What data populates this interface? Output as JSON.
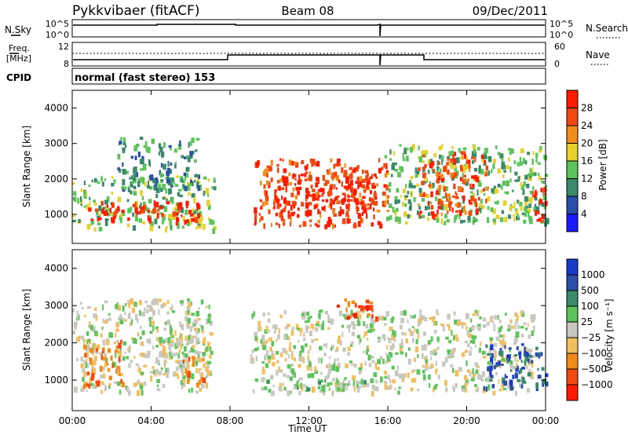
{
  "header": {
    "radar": "Pykkvibaer (fitACF)",
    "beam": "Beam 08",
    "date": "09/Dec/2011"
  },
  "params": {
    "nsky_label": "N.Sky",
    "nsky_ticks": [
      "10^5",
      "10^0"
    ],
    "nsearch_label": "N.Search",
    "nsearch_ticks": [
      "10^5",
      "10^0"
    ],
    "freq_label_top": "Freq.",
    "freq_label_bottom": "[MHz]",
    "freq_ticks": [
      "12",
      "8"
    ],
    "nave_label": "Nave",
    "nave_ticks": [
      "60",
      "0"
    ],
    "cpid_label": "CPID",
    "cpid_value": "normal (fast stereo) 153"
  },
  "colors": {
    "power": [
      "#1a1aff",
      "#2a4fa8",
      "#3a8a6a",
      "#5cc45a",
      "#e6d02a",
      "#f08c1a",
      "#f04a10",
      "#ff1a00"
    ],
    "velocity": [
      "#ff1a00",
      "#f04a10",
      "#f08c1a",
      "#f0c060",
      "#c8c8c0",
      "#5cc45a",
      "#3a8a6a",
      "#2a4fa8",
      "#1a3acc"
    ]
  },
  "chart_data": [
    {
      "type": "heatmap",
      "name": "power-panel",
      "xlabel": "Time UT",
      "ylabel": "Slant Range [km]",
      "xlim": [
        0,
        24
      ],
      "ylim": [
        180,
        4500
      ],
      "x_ticks": [
        "00:00",
        "04:00",
        "08:00",
        "12:00",
        "16:00",
        "20:00",
        "00:00"
      ],
      "y_ticks": [
        1000,
        2000,
        3000,
        4000
      ],
      "colorbar": {
        "label": "Power [dB]",
        "ticks": [
          "28",
          "24",
          "20",
          "16",
          "12",
          "8",
          "4"
        ]
      },
      "regions": [
        {
          "x": [
            0.0,
            7.2
          ],
          "y": [
            600,
            2100
          ],
          "level": 3
        },
        {
          "x": [
            0.8,
            6.4
          ],
          "y": [
            800,
            1400
          ],
          "level": 7
        },
        {
          "x": [
            2.2,
            6.4
          ],
          "y": [
            1700,
            3200
          ],
          "level": 2
        },
        {
          "x": [
            9.2,
            16.0
          ],
          "y": [
            700,
            2600
          ],
          "level": 6
        },
        {
          "x": [
            10.2,
            15.4
          ],
          "y": [
            1000,
            2200
          ],
          "level": 7
        },
        {
          "x": [
            15.8,
            24.0
          ],
          "y": [
            800,
            3000
          ],
          "level": 3
        },
        {
          "x": [
            17.5,
            21.0
          ],
          "y": [
            1000,
            2800
          ],
          "level": 6
        },
        {
          "x": [
            23.3,
            24.0
          ],
          "y": [
            800,
            1800
          ],
          "level": 7
        }
      ]
    },
    {
      "type": "heatmap",
      "name": "velocity-panel",
      "xlabel": "Time UT",
      "ylabel": "Slant Range [km]",
      "xlim": [
        0,
        24
      ],
      "ylim": [
        180,
        4500
      ],
      "x_ticks": [
        "00:00",
        "04:00",
        "08:00",
        "12:00",
        "16:00",
        "20:00",
        "00:00"
      ],
      "y_ticks": [
        1000,
        2000,
        3000,
        4000
      ],
      "colorbar": {
        "label": "Velocity [m s⁻¹]",
        "ticks": [
          "1000",
          "500",
          "100",
          "25",
          "−25",
          "−100",
          "−500",
          "−1000"
        ]
      },
      "regions": [
        {
          "x": [
            0.0,
            7.0
          ],
          "y": [
            700,
            3200
          ],
          "level": 4
        },
        {
          "x": [
            0.5,
            2.5
          ],
          "y": [
            900,
            2100
          ],
          "level": 2
        },
        {
          "x": [
            4.0,
            7.0
          ],
          "y": [
            1200,
            2200
          ],
          "level": 4
        },
        {
          "x": [
            5.6,
            6.6
          ],
          "y": [
            900,
            1700
          ],
          "level": 2
        },
        {
          "x": [
            9.0,
            23.4
          ],
          "y": [
            700,
            2900
          ],
          "level": 4
        },
        {
          "x": [
            9.6,
            15.0
          ],
          "y": [
            800,
            1100
          ],
          "level": 5
        },
        {
          "x": [
            13.2,
            15.4
          ],
          "y": [
            2700,
            3200
          ],
          "level": 1
        },
        {
          "x": [
            20.8,
            24.0
          ],
          "y": [
            800,
            2000
          ],
          "level": 7
        }
      ]
    }
  ]
}
